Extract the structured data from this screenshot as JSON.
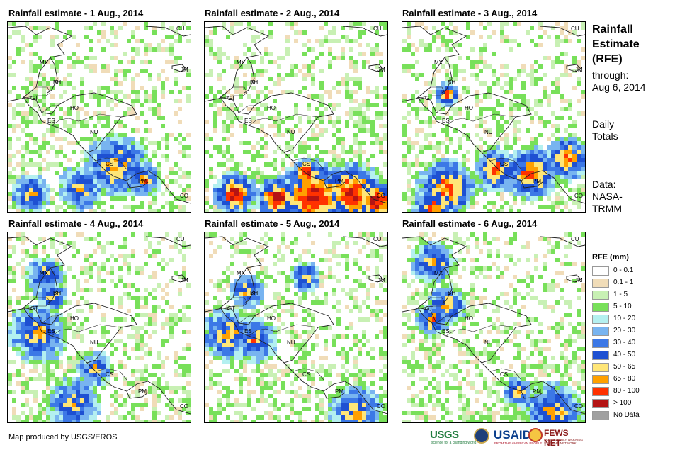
{
  "panels": [
    {
      "title": "Rainfall estimate - 1 Aug., 2014",
      "intensity": 0.55,
      "heavy_zone": "costa-rica"
    },
    {
      "title": "Rainfall estimate - 2 Aug., 2014",
      "intensity": 0.85,
      "heavy_zone": "pacific-south"
    },
    {
      "title": "Rainfall estimate - 3 Aug., 2014",
      "intensity": 0.7,
      "heavy_zone": "pacific-band"
    },
    {
      "title": "Rainfall estimate - 4 Aug., 2014",
      "intensity": 0.5,
      "heavy_zone": "north-west"
    },
    {
      "title": "Rainfall estimate - 5 Aug., 2014",
      "intensity": 0.55,
      "heavy_zone": "guatemala-coast"
    },
    {
      "title": "Rainfall estimate - 6 Aug., 2014",
      "intensity": 0.55,
      "heavy_zone": "yucatan-colombia"
    }
  ],
  "country_labels": [
    "MX",
    "BH",
    "GT",
    "HO",
    "ES",
    "NU",
    "CS",
    "PM",
    "CU",
    "JM",
    "CO"
  ],
  "side": {
    "title_line1": "Rainfall",
    "title_line2": "Estimate",
    "title_line3": "(RFE)",
    "through_label": "through:",
    "through_date": "Aug 6, 2014",
    "totals_line1": "Daily",
    "totals_line2": "Totals",
    "data_line1": "Data:",
    "data_line2": "NASA-",
    "data_line3": "TRMM"
  },
  "legend": {
    "title": "RFE (mm)",
    "items": [
      {
        "label": "0 - 0.1",
        "color": "#ffffff"
      },
      {
        "label": "0.1 - 1",
        "color": "#f0dcb8"
      },
      {
        "label": "1 - 5",
        "color": "#c8f0b4"
      },
      {
        "label": "5 - 10",
        "color": "#78e05a"
      },
      {
        "label": "10 - 20",
        "color": "#b4f0f0"
      },
      {
        "label": "20 - 30",
        "color": "#78b4f0"
      },
      {
        "label": "30 - 40",
        "color": "#3c78e6"
      },
      {
        "label": "40 - 50",
        "color": "#1e50d2"
      },
      {
        "label": "50 - 65",
        "color": "#ffe678"
      },
      {
        "label": "65 - 80",
        "color": "#ffa000"
      },
      {
        "label": "80 - 100",
        "color": "#ff3200"
      },
      {
        "label": "> 100",
        "color": "#b41414"
      },
      {
        "label": "No Data",
        "color": "#a0a0a0"
      }
    ]
  },
  "footer": {
    "credit": "Map produced by USGS/EROS"
  },
  "logos": {
    "usgs": "USGS",
    "usgs_tagline": "science for a changing world",
    "usaid": "USAID",
    "usaid_tagline": "FROM THE AMERICAN PEOPLE",
    "fews": "FEWS NET",
    "fews_tagline": "FAMINE EARLY WARNING SYSTEMS NETWORK"
  }
}
